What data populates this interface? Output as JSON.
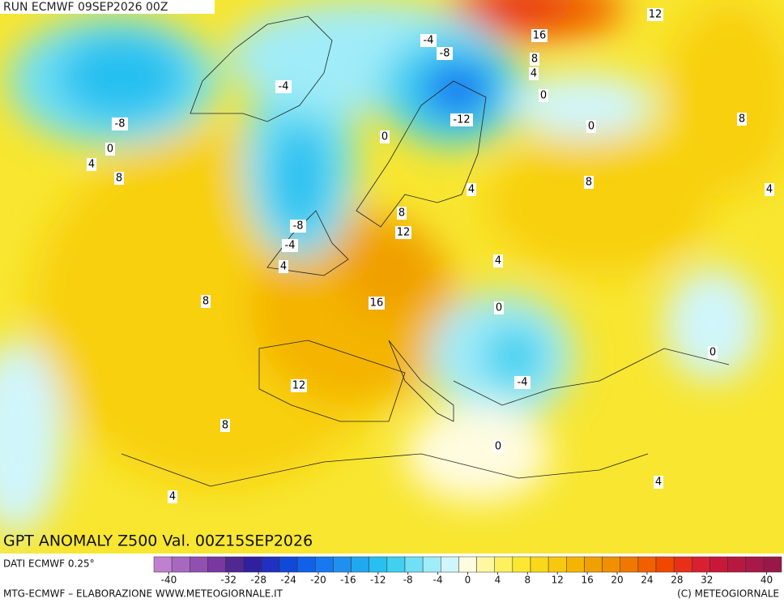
{
  "header": {
    "run": "RUN ECMWF 09SEP2026 00Z"
  },
  "map": {
    "title": "GPT ANOMALY Z500 Val. 00Z15SEP2026",
    "contour_labels": [
      12,
      16,
      -4,
      -8,
      8,
      4,
      0,
      -4,
      -12,
      -8,
      0,
      8,
      0,
      0,
      4,
      8,
      8,
      4,
      4,
      -8,
      8,
      12,
      -4,
      4,
      4,
      8,
      16,
      0,
      0,
      -4,
      12,
      8,
      0,
      4,
      4
    ]
  },
  "colorbar": {
    "source": "DATI ECMWF 0.25°",
    "lim": [
      -42,
      42
    ],
    "colors": [
      "#c080d0",
      "#a868c0",
      "#9050b0",
      "#7838a0",
      "#502890",
      "#3020a0",
      "#2030c0",
      "#1048d8",
      "#1060e8",
      "#1878f0",
      "#2090f0",
      "#20a8f0",
      "#28c0f0",
      "#40d0f0",
      "#70e0f4",
      "#a0ecf8",
      "#d0f6fc",
      "#fffce0",
      "#fff8a0",
      "#fff060",
      "#fce830",
      "#f8d818",
      "#f8c810",
      "#f4b400",
      "#f0a000",
      "#f09000",
      "#f07800",
      "#f06000",
      "#f04800",
      "#e83018",
      "#d82030",
      "#c81838",
      "#b81840",
      "#a81848",
      "#981848"
    ],
    "ticks": [
      -40,
      -32,
      -28,
      -24,
      -20,
      -16,
      -12,
      -8,
      -4,
      0,
      4,
      8,
      12,
      16,
      20,
      24,
      28,
      32,
      40
    ]
  },
  "footer": {
    "left": "MTG-ECMWF – ELABORAZIONE WWW.METEOGIORNALE.IT",
    "right": "(C) METEOGIORNALE"
  }
}
